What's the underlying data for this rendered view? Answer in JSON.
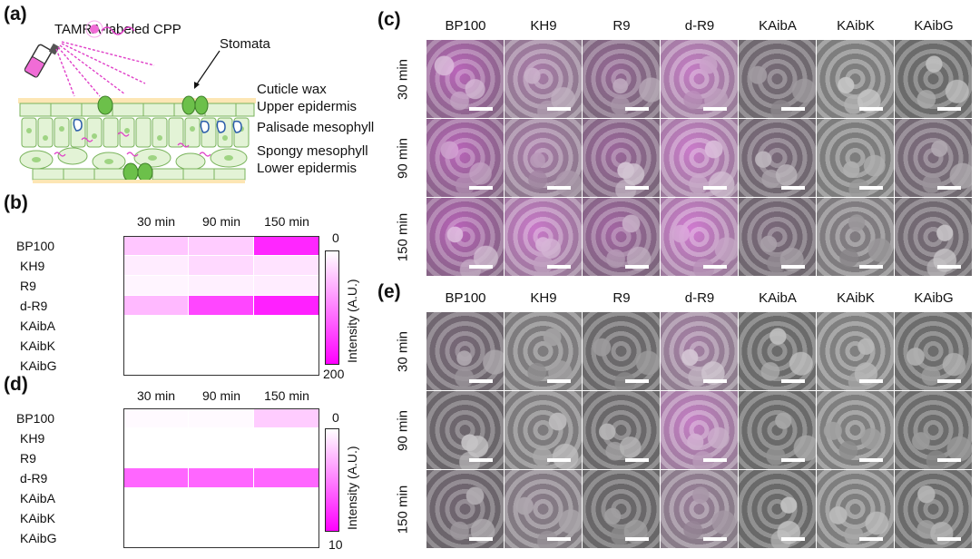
{
  "panels": {
    "a": {
      "label": "(a)",
      "spray_label": "TAMRA-labeled CPP",
      "stomata_label": "Stomata",
      "layers": [
        "Cuticle wax",
        "Upper epidermis",
        "Palisade mesophyll",
        "Spongy mesophyll",
        "Lower epidermis"
      ]
    },
    "b": {
      "label": "(b)",
      "colorbar": {
        "title": "Intensity (A.U.)",
        "min_label": "0",
        "max_label": "200",
        "min": 0,
        "max": 200
      },
      "low_color": "#ffffff",
      "high_color": "#ff00ff"
    },
    "c": {
      "label": "(c)"
    },
    "d": {
      "label": "(d)",
      "colorbar": {
        "title": "Intensity (A.U.)",
        "min_label": "0",
        "max_label": "10",
        "min": 0,
        "max": 10
      }
    },
    "e": {
      "label": "(e)"
    }
  },
  "time_labels": [
    "30 min",
    "90 min",
    "150 min"
  ],
  "peptides": [
    "BP100",
    "KH9",
    "R9",
    "d-R9",
    "KAibA",
    "KAibK",
    "KAibG"
  ],
  "chart_data": [
    {
      "type": "heatmap",
      "panel": "b",
      "x": [
        "30 min",
        "90 min",
        "150 min"
      ],
      "y": [
        "BP100",
        "KH9",
        "R9",
        "d-R9",
        "KAibA",
        "KAibK",
        "KAibG"
      ],
      "values": [
        [
          45,
          40,
          170
        ],
        [
          15,
          30,
          22
        ],
        [
          8,
          12,
          14
        ],
        [
          55,
          145,
          175
        ],
        [
          0,
          0,
          0
        ],
        [
          0,
          0,
          0
        ],
        [
          0,
          0,
          0
        ]
      ],
      "zlim": [
        0,
        200
      ]
    },
    {
      "type": "heatmap",
      "panel": "d",
      "x": [
        "30 min",
        "90 min",
        "150 min"
      ],
      "y": [
        "BP100",
        "KH9",
        "R9",
        "d-R9",
        "KAibA",
        "KAibK",
        "KAibG"
      ],
      "values": [
        [
          0.2,
          0.2,
          2.0
        ],
        [
          0,
          0,
          0
        ],
        [
          0,
          0,
          0
        ],
        [
          6.0,
          6.0,
          6.0
        ],
        [
          0,
          0,
          0
        ],
        [
          0,
          0,
          0
        ],
        [
          0,
          0,
          0
        ]
      ],
      "zlim": [
        0,
        10
      ]
    }
  ],
  "microscopy": {
    "c_magenta": [
      [
        0.55,
        0.35,
        0.3,
        0.55,
        0.08,
        0.0,
        0.0
      ],
      [
        0.55,
        0.35,
        0.35,
        0.6,
        0.12,
        0.0,
        0.12
      ],
      [
        0.55,
        0.6,
        0.4,
        0.65,
        0.12,
        0.04,
        0.08
      ]
    ],
    "e_magenta": [
      [
        0.1,
        0.02,
        0.02,
        0.3,
        0.0,
        0.0,
        0.0
      ],
      [
        0.05,
        0.02,
        0.02,
        0.55,
        0.0,
        0.0,
        0.0
      ],
      [
        0.08,
        0.1,
        0.02,
        0.2,
        0.0,
        0.0,
        0.0
      ]
    ]
  }
}
